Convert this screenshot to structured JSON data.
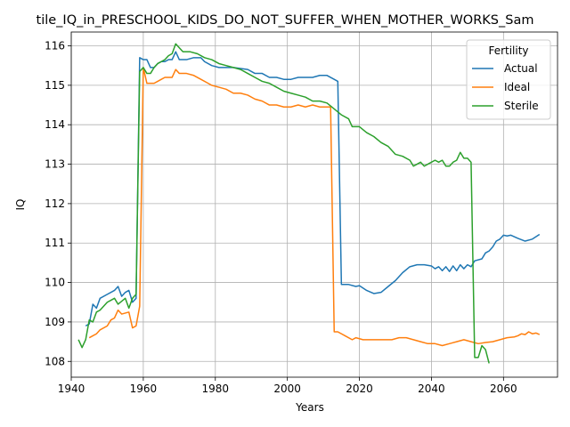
{
  "chart_data": {
    "type": "line",
    "title": "tile_IQ_in_PRESCHOOL_KIDS_DO_NOT_SUFFER_WHEN_MOTHER_WORKS_Sam",
    "xlabel": "Years",
    "ylabel": "IQ",
    "xlim": [
      1940,
      2075
    ],
    "ylim": [
      107.6,
      116.35
    ],
    "xticks": [
      1940,
      1960,
      1980,
      2000,
      2020,
      2040,
      2060
    ],
    "yticks": [
      108,
      109,
      110,
      111,
      112,
      113,
      114,
      115,
      116
    ],
    "grid": true,
    "legend": {
      "title": "Fertility",
      "placement": "top-right"
    },
    "series": [
      {
        "name": "Actual",
        "color": "#1f77b4",
        "points": [
          [
            1944,
            108.9
          ],
          [
            1945,
            108.95
          ],
          [
            1946,
            109.45
          ],
          [
            1947,
            109.35
          ],
          [
            1948,
            109.6
          ],
          [
            1950,
            109.7
          ],
          [
            1952,
            109.8
          ],
          [
            1953,
            109.9
          ],
          [
            1954,
            109.65
          ],
          [
            1955,
            109.75
          ],
          [
            1956,
            109.8
          ],
          [
            1957,
            109.5
          ],
          [
            1958,
            109.6
          ],
          [
            1959,
            115.7
          ],
          [
            1960,
            115.65
          ],
          [
            1961,
            115.65
          ],
          [
            1962,
            115.45
          ],
          [
            1963,
            115.45
          ],
          [
            1964,
            115.55
          ],
          [
            1965,
            115.6
          ],
          [
            1966,
            115.6
          ],
          [
            1967,
            115.65
          ],
          [
            1968,
            115.65
          ],
          [
            1969,
            115.85
          ],
          [
            1970,
            115.65
          ],
          [
            1972,
            115.65
          ],
          [
            1974,
            115.7
          ],
          [
            1976,
            115.7
          ],
          [
            1977,
            115.6
          ],
          [
            1979,
            115.5
          ],
          [
            1981,
            115.45
          ],
          [
            1985,
            115.45
          ],
          [
            1989,
            115.4
          ],
          [
            1991,
            115.3
          ],
          [
            1993,
            115.3
          ],
          [
            1995,
            115.2
          ],
          [
            1997,
            115.2
          ],
          [
            1999,
            115.15
          ],
          [
            2001,
            115.15
          ],
          [
            2003,
            115.2
          ],
          [
            2005,
            115.2
          ],
          [
            2007,
            115.2
          ],
          [
            2009,
            115.25
          ],
          [
            2011,
            115.25
          ],
          [
            2013,
            115.15
          ],
          [
            2014,
            115.1
          ],
          [
            2015,
            109.95
          ],
          [
            2017,
            109.95
          ],
          [
            2019,
            109.9
          ],
          [
            2020,
            109.92
          ],
          [
            2022,
            109.8
          ],
          [
            2024,
            109.72
          ],
          [
            2026,
            109.75
          ],
          [
            2028,
            109.9
          ],
          [
            2030,
            110.05
          ],
          [
            2032,
            110.25
          ],
          [
            2034,
            110.4
          ],
          [
            2036,
            110.45
          ],
          [
            2038,
            110.45
          ],
          [
            2040,
            110.42
          ],
          [
            2041,
            110.35
          ],
          [
            2042,
            110.4
          ],
          [
            2043,
            110.3
          ],
          [
            2044,
            110.4
          ],
          [
            2045,
            110.28
          ],
          [
            2046,
            110.42
          ],
          [
            2047,
            110.3
          ],
          [
            2048,
            110.45
          ],
          [
            2049,
            110.35
          ],
          [
            2050,
            110.45
          ],
          [
            2051,
            110.4
          ],
          [
            2052,
            110.55
          ],
          [
            2054,
            110.6
          ],
          [
            2055,
            110.75
          ],
          [
            2056,
            110.8
          ],
          [
            2057,
            110.9
          ],
          [
            2058,
            111.05
          ],
          [
            2059,
            111.1
          ],
          [
            2060,
            111.2
          ],
          [
            2061,
            111.18
          ],
          [
            2062,
            111.2
          ],
          [
            2064,
            111.12
          ],
          [
            2066,
            111.05
          ],
          [
            2068,
            111.1
          ],
          [
            2070,
            111.22
          ]
        ]
      },
      {
        "name": "Ideal",
        "color": "#ff7f0e",
        "points": [
          [
            1945,
            108.6
          ],
          [
            1946,
            108.65
          ],
          [
            1947,
            108.7
          ],
          [
            1948,
            108.8
          ],
          [
            1950,
            108.9
          ],
          [
            1951,
            109.05
          ],
          [
            1952,
            109.1
          ],
          [
            1953,
            109.3
          ],
          [
            1954,
            109.2
          ],
          [
            1956,
            109.25
          ],
          [
            1957,
            108.85
          ],
          [
            1958,
            108.9
          ],
          [
            1959,
            109.4
          ],
          [
            1960,
            115.45
          ],
          [
            1961,
            115.05
          ],
          [
            1963,
            115.05
          ],
          [
            1964,
            115.1
          ],
          [
            1965,
            115.15
          ],
          [
            1966,
            115.2
          ],
          [
            1968,
            115.2
          ],
          [
            1969,
            115.4
          ],
          [
            1970,
            115.3
          ],
          [
            1972,
            115.3
          ],
          [
            1974,
            115.25
          ],
          [
            1976,
            115.15
          ],
          [
            1978,
            115.05
          ],
          [
            1979,
            115.0
          ],
          [
            1981,
            114.95
          ],
          [
            1983,
            114.9
          ],
          [
            1985,
            114.8
          ],
          [
            1987,
            114.8
          ],
          [
            1989,
            114.75
          ],
          [
            1991,
            114.65
          ],
          [
            1993,
            114.6
          ],
          [
            1995,
            114.5
          ],
          [
            1997,
            114.5
          ],
          [
            1999,
            114.45
          ],
          [
            2001,
            114.45
          ],
          [
            2003,
            114.5
          ],
          [
            2005,
            114.45
          ],
          [
            2007,
            114.5
          ],
          [
            2009,
            114.45
          ],
          [
            2011,
            114.45
          ],
          [
            2012,
            114.45
          ],
          [
            2013,
            108.75
          ],
          [
            2014,
            108.75
          ],
          [
            2016,
            108.65
          ],
          [
            2018,
            108.55
          ],
          [
            2019,
            108.6
          ],
          [
            2021,
            108.55
          ],
          [
            2023,
            108.55
          ],
          [
            2025,
            108.55
          ],
          [
            2027,
            108.55
          ],
          [
            2029,
            108.55
          ],
          [
            2031,
            108.6
          ],
          [
            2033,
            108.6
          ],
          [
            2035,
            108.55
          ],
          [
            2037,
            108.5
          ],
          [
            2039,
            108.45
          ],
          [
            2041,
            108.45
          ],
          [
            2043,
            108.4
          ],
          [
            2045,
            108.45
          ],
          [
            2047,
            108.5
          ],
          [
            2049,
            108.55
          ],
          [
            2051,
            108.5
          ],
          [
            2053,
            108.45
          ],
          [
            2055,
            108.48
          ],
          [
            2057,
            108.5
          ],
          [
            2059,
            108.55
          ],
          [
            2061,
            108.6
          ],
          [
            2063,
            108.62
          ],
          [
            2064,
            108.65
          ],
          [
            2065,
            108.7
          ],
          [
            2066,
            108.68
          ],
          [
            2067,
            108.75
          ],
          [
            2068,
            108.7
          ],
          [
            2069,
            108.72
          ],
          [
            2070,
            108.68
          ]
        ]
      },
      {
        "name": "Sterile",
        "color": "#2ca02c",
        "points": [
          [
            1942,
            108.55
          ],
          [
            1943,
            108.35
          ],
          [
            1944,
            108.55
          ],
          [
            1945,
            109.05
          ],
          [
            1946,
            109.0
          ],
          [
            1947,
            109.25
          ],
          [
            1948,
            109.3
          ],
          [
            1950,
            109.5
          ],
          [
            1951,
            109.55
          ],
          [
            1952,
            109.6
          ],
          [
            1953,
            109.45
          ],
          [
            1955,
            109.6
          ],
          [
            1956,
            109.35
          ],
          [
            1957,
            109.6
          ],
          [
            1958,
            109.7
          ],
          [
            1959,
            115.35
          ],
          [
            1960,
            115.45
          ],
          [
            1961,
            115.3
          ],
          [
            1962,
            115.3
          ],
          [
            1963,
            115.45
          ],
          [
            1964,
            115.55
          ],
          [
            1965,
            115.6
          ],
          [
            1966,
            115.65
          ],
          [
            1967,
            115.75
          ],
          [
            1968,
            115.8
          ],
          [
            1969,
            116.05
          ],
          [
            1970,
            115.95
          ],
          [
            1971,
            115.85
          ],
          [
            1973,
            115.85
          ],
          [
            1975,
            115.8
          ],
          [
            1977,
            115.7
          ],
          [
            1979,
            115.65
          ],
          [
            1981,
            115.55
          ],
          [
            1983,
            115.5
          ],
          [
            1985,
            115.45
          ],
          [
            1987,
            115.4
          ],
          [
            1989,
            115.3
          ],
          [
            1991,
            115.2
          ],
          [
            1993,
            115.1
          ],
          [
            1995,
            115.05
          ],
          [
            1997,
            114.95
          ],
          [
            1999,
            114.85
          ],
          [
            2001,
            114.8
          ],
          [
            2003,
            114.75
          ],
          [
            2005,
            114.7
          ],
          [
            2007,
            114.6
          ],
          [
            2009,
            114.6
          ],
          [
            2011,
            114.55
          ],
          [
            2013,
            114.4
          ],
          [
            2015,
            114.25
          ],
          [
            2017,
            114.15
          ],
          [
            2018,
            113.95
          ],
          [
            2020,
            113.95
          ],
          [
            2022,
            113.8
          ],
          [
            2024,
            113.7
          ],
          [
            2026,
            113.55
          ],
          [
            2028,
            113.45
          ],
          [
            2030,
            113.25
          ],
          [
            2032,
            113.2
          ],
          [
            2034,
            113.1
          ],
          [
            2035,
            112.95
          ],
          [
            2036,
            113.0
          ],
          [
            2037,
            113.05
          ],
          [
            2038,
            112.95
          ],
          [
            2040,
            113.05
          ],
          [
            2041,
            113.1
          ],
          [
            2042,
            113.05
          ],
          [
            2043,
            113.1
          ],
          [
            2044,
            112.95
          ],
          [
            2045,
            112.95
          ],
          [
            2046,
            113.05
          ],
          [
            2047,
            113.1
          ],
          [
            2048,
            113.3
          ],
          [
            2049,
            113.15
          ],
          [
            2050,
            113.15
          ],
          [
            2051,
            113.05
          ],
          [
            2052,
            108.1
          ],
          [
            2053,
            108.1
          ],
          [
            2054,
            108.4
          ],
          [
            2055,
            108.3
          ],
          [
            2056,
            107.95
          ]
        ]
      }
    ]
  }
}
